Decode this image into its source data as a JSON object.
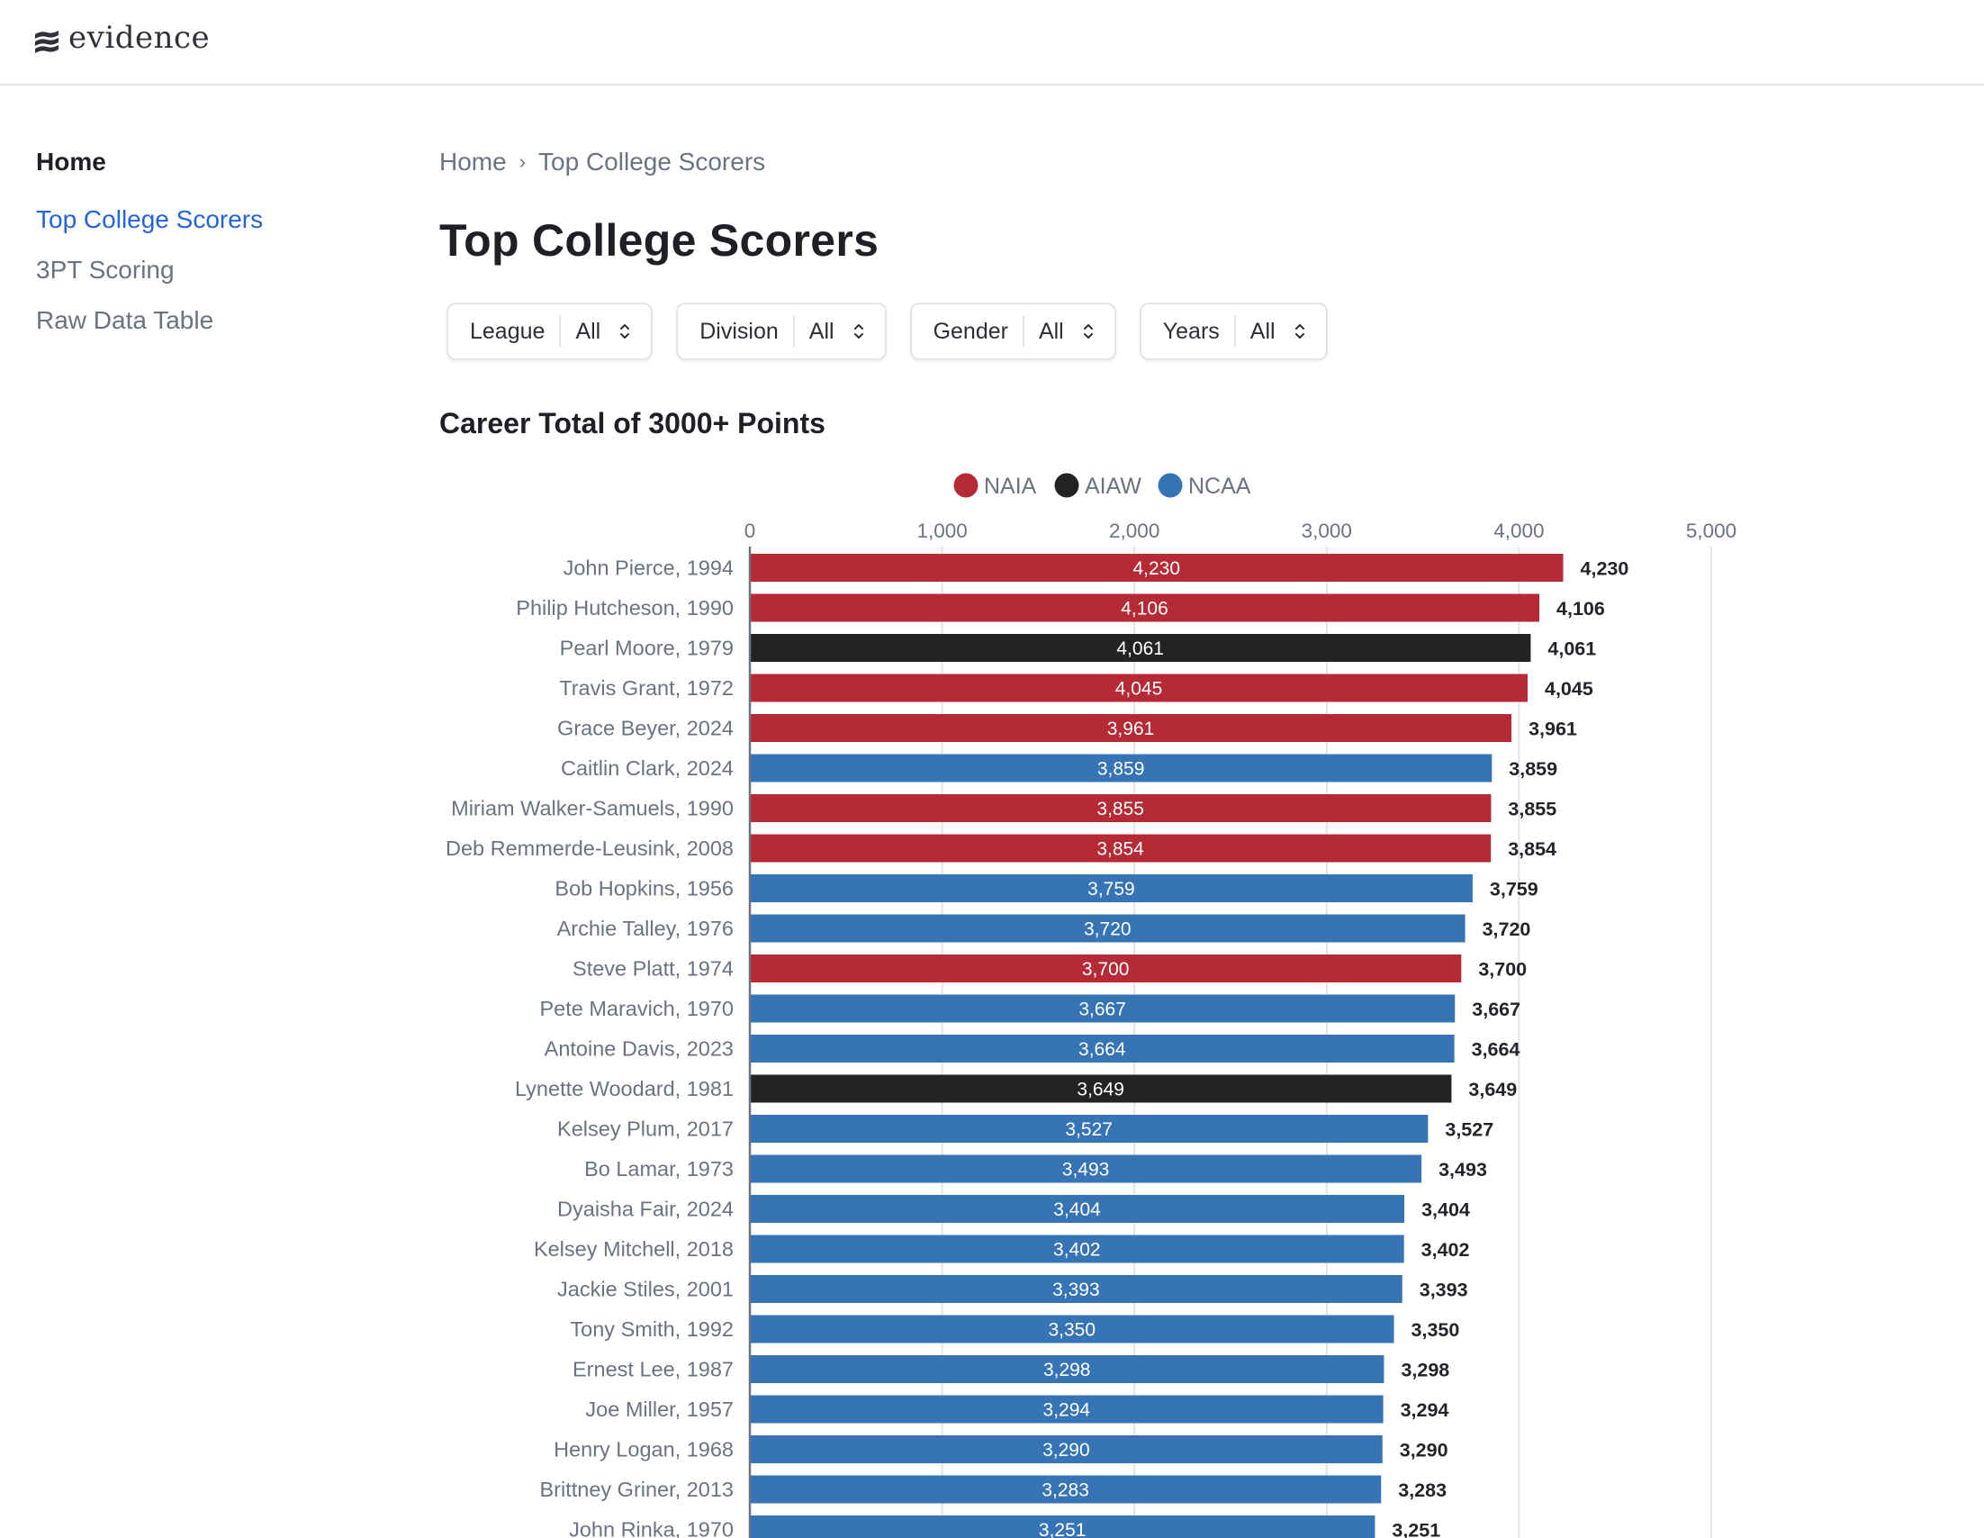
{
  "app": {
    "logo_text": "evidence"
  },
  "sidebar": {
    "home": "Home",
    "items": [
      {
        "label": "Top College Scorers",
        "active": true
      },
      {
        "label": "3PT Scoring",
        "active": false
      },
      {
        "label": "Raw Data Table",
        "active": false
      }
    ]
  },
  "breadcrumb": {
    "items": [
      "Home",
      "Top College Scorers"
    ],
    "separator": "›"
  },
  "page": {
    "title": "Top College Scorers"
  },
  "filters": [
    {
      "label": "League",
      "value": "All"
    },
    {
      "label": "Division",
      "value": "All"
    },
    {
      "label": "Gender",
      "value": "All"
    },
    {
      "label": "Years",
      "value": "All"
    }
  ],
  "colors": {
    "NAIA": "#b52a35",
    "AIAW": "#232326",
    "NCAA": "#3774b5",
    "accent": "#2563d9"
  },
  "chart_data": {
    "type": "bar",
    "orientation": "horizontal",
    "title": "Career Total of 3000+ Points",
    "xlabel": "",
    "ylabel": "",
    "xlim": [
      0,
      5000
    ],
    "x_ticks": [
      0,
      1000,
      2000,
      3000,
      4000,
      5000
    ],
    "x_tick_labels": [
      "0",
      "1,000",
      "2,000",
      "3,000",
      "4,000",
      "5,000"
    ],
    "grid": true,
    "legend": {
      "placement": "top-center",
      "entries": [
        "NAIA",
        "AIAW",
        "NCAA"
      ]
    },
    "bars": [
      {
        "category": "John Pierce, 1994",
        "value": 4230,
        "label": "4,230",
        "series": "NAIA"
      },
      {
        "category": "Philip Hutcheson, 1990",
        "value": 4106,
        "label": "4,106",
        "series": "NAIA"
      },
      {
        "category": "Pearl Moore, 1979",
        "value": 4061,
        "label": "4,061",
        "series": "AIAW"
      },
      {
        "category": "Travis Grant, 1972",
        "value": 4045,
        "label": "4,045",
        "series": "NAIA"
      },
      {
        "category": "Grace Beyer, 2024",
        "value": 3961,
        "label": "3,961",
        "series": "NAIA"
      },
      {
        "category": "Caitlin Clark, 2024",
        "value": 3859,
        "label": "3,859",
        "series": "NCAA"
      },
      {
        "category": "Miriam Walker-Samuels, 1990",
        "value": 3855,
        "label": "3,855",
        "series": "NAIA"
      },
      {
        "category": "Deb Remmerde-Leusink, 2008",
        "value": 3854,
        "label": "3,854",
        "series": "NAIA"
      },
      {
        "category": "Bob Hopkins, 1956",
        "value": 3759,
        "label": "3,759",
        "series": "NCAA"
      },
      {
        "category": "Archie Talley, 1976",
        "value": 3720,
        "label": "3,720",
        "series": "NCAA"
      },
      {
        "category": "Steve Platt, 1974",
        "value": 3700,
        "label": "3,700",
        "series": "NAIA"
      },
      {
        "category": "Pete Maravich, 1970",
        "value": 3667,
        "label": "3,667",
        "series": "NCAA"
      },
      {
        "category": "Antoine Davis, 2023",
        "value": 3664,
        "label": "3,664",
        "series": "NCAA"
      },
      {
        "category": "Lynette Woodard, 1981",
        "value": 3649,
        "label": "3,649",
        "series": "AIAW"
      },
      {
        "category": "Kelsey Plum, 2017",
        "value": 3527,
        "label": "3,527",
        "series": "NCAA"
      },
      {
        "category": "Bo Lamar, 1973",
        "value": 3493,
        "label": "3,493",
        "series": "NCAA"
      },
      {
        "category": "Dyaisha Fair, 2024",
        "value": 3404,
        "label": "3,404",
        "series": "NCAA"
      },
      {
        "category": "Kelsey Mitchell, 2018",
        "value": 3402,
        "label": "3,402",
        "series": "NCAA"
      },
      {
        "category": "Jackie Stiles, 2001",
        "value": 3393,
        "label": "3,393",
        "series": "NCAA"
      },
      {
        "category": "Tony Smith, 1992",
        "value": 3350,
        "label": "3,350",
        "series": "NCAA"
      },
      {
        "category": "Ernest Lee, 1987",
        "value": 3298,
        "label": "3,298",
        "series": "NCAA"
      },
      {
        "category": "Joe Miller, 1957",
        "value": 3294,
        "label": "3,294",
        "series": "NCAA"
      },
      {
        "category": "Henry Logan, 1968",
        "value": 3290,
        "label": "3,290",
        "series": "NCAA"
      },
      {
        "category": "Brittney Griner, 2013",
        "value": 3283,
        "label": "3,283",
        "series": "NCAA"
      },
      {
        "category": "John Rinka, 1970",
        "value": 3251,
        "label": "3,251",
        "series": "NCAA"
      }
    ]
  }
}
